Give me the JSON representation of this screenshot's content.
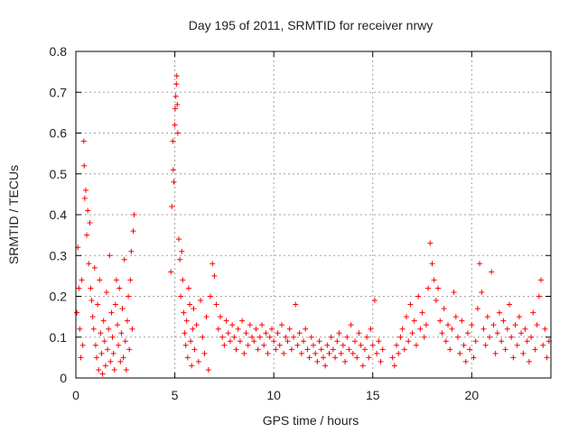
{
  "chart_data": {
    "type": "scatter",
    "title": "Day 195 of 2011, SRMTID for receiver nrwy",
    "xlabel": "GPS time / hours",
    "ylabel": "SRMTID / TECUs",
    "xlim": [
      0,
      24
    ],
    "ylim": [
      0,
      0.8
    ],
    "xticks": [
      0,
      5,
      10,
      15,
      20
    ],
    "yticks": [
      0,
      0.1,
      0.2,
      0.3,
      0.4,
      0.5,
      0.6,
      0.7,
      0.8
    ],
    "xtick_labels": [
      "0",
      "5",
      "10",
      "15",
      "20"
    ],
    "ytick_labels": [
      "0",
      "0.1",
      "0.2",
      "0.3",
      "0.4",
      "0.5",
      "0.6",
      "0.7",
      "0.8"
    ],
    "grid": true,
    "marker": "+",
    "color": "#ff0000",
    "series": [
      {
        "name": "SRMTID",
        "points": [
          [
            0.05,
            0.16
          ],
          [
            0.1,
            0.32
          ],
          [
            0.15,
            0.22
          ],
          [
            0.2,
            0.12
          ],
          [
            0.25,
            0.05
          ],
          [
            0.3,
            0.24
          ],
          [
            0.35,
            0.08
          ],
          [
            0.4,
            0.58
          ],
          [
            0.42,
            0.52
          ],
          [
            0.45,
            0.44
          ],
          [
            0.5,
            0.46
          ],
          [
            0.55,
            0.35
          ],
          [
            0.6,
            0.41
          ],
          [
            0.65,
            0.28
          ],
          [
            0.7,
            0.38
          ],
          [
            0.75,
            0.22
          ],
          [
            0.8,
            0.19
          ],
          [
            0.85,
            0.15
          ],
          [
            0.9,
            0.12
          ],
          [
            0.95,
            0.27
          ],
          [
            1.0,
            0.08
          ],
          [
            1.05,
            0.05
          ],
          [
            1.1,
            0.18
          ],
          [
            1.15,
            0.02
          ],
          [
            1.2,
            0.24
          ],
          [
            1.25,
            0.11
          ],
          [
            1.3,
            0.06
          ],
          [
            1.35,
            0.01
          ],
          [
            1.4,
            0.14
          ],
          [
            1.45,
            0.09
          ],
          [
            1.5,
            0.03
          ],
          [
            1.55,
            0.21
          ],
          [
            1.6,
            0.07
          ],
          [
            1.65,
            0.12
          ],
          [
            1.7,
            0.3
          ],
          [
            1.75,
            0.04
          ],
          [
            1.8,
            0.16
          ],
          [
            1.85,
            0.1
          ],
          [
            1.9,
            0.06
          ],
          [
            1.95,
            0.02
          ],
          [
            2.0,
            0.18
          ],
          [
            2.05,
            0.24
          ],
          [
            2.1,
            0.13
          ],
          [
            2.15,
            0.08
          ],
          [
            2.2,
            0.22
          ],
          [
            2.25,
            0.04
          ],
          [
            2.3,
            0.11
          ],
          [
            2.35,
            0.17
          ],
          [
            2.4,
            0.05
          ],
          [
            2.45,
            0.29
          ],
          [
            2.5,
            0.09
          ],
          [
            2.55,
            0.02
          ],
          [
            2.6,
            0.14
          ],
          [
            2.65,
            0.2
          ],
          [
            2.7,
            0.07
          ],
          [
            2.75,
            0.24
          ],
          [
            2.8,
            0.31
          ],
          [
            2.85,
            0.12
          ],
          [
            2.9,
            0.36
          ],
          [
            2.95,
            0.4
          ],
          [
            4.8,
            0.26
          ],
          [
            4.85,
            0.42
          ],
          [
            4.9,
            0.58
          ],
          [
            4.92,
            0.51
          ],
          [
            4.95,
            0.48
          ],
          [
            5.0,
            0.62
          ],
          [
            5.02,
            0.66
          ],
          [
            5.05,
            0.69
          ],
          [
            5.08,
            0.72
          ],
          [
            5.1,
            0.74
          ],
          [
            5.12,
            0.67
          ],
          [
            5.15,
            0.6
          ],
          [
            5.2,
            0.34
          ],
          [
            5.25,
            0.29
          ],
          [
            5.3,
            0.2
          ],
          [
            5.35,
            0.31
          ],
          [
            5.4,
            0.24
          ],
          [
            5.45,
            0.16
          ],
          [
            5.5,
            0.11
          ],
          [
            5.55,
            0.08
          ],
          [
            5.6,
            0.14
          ],
          [
            5.65,
            0.05
          ],
          [
            5.7,
            0.22
          ],
          [
            5.75,
            0.18
          ],
          [
            5.8,
            0.09
          ],
          [
            5.85,
            0.03
          ],
          [
            5.9,
            0.12
          ],
          [
            5.95,
            0.17
          ],
          [
            6.0,
            0.07
          ],
          [
            6.1,
            0.13
          ],
          [
            6.2,
            0.04
          ],
          [
            6.3,
            0.19
          ],
          [
            6.4,
            0.1
          ],
          [
            6.5,
            0.06
          ],
          [
            6.6,
            0.15
          ],
          [
            6.7,
            0.02
          ],
          [
            6.8,
            0.2
          ],
          [
            6.9,
            0.28
          ],
          [
            7.0,
            0.25
          ],
          [
            7.1,
            0.18
          ],
          [
            7.2,
            0.12
          ],
          [
            7.3,
            0.15
          ],
          [
            7.4,
            0.1
          ],
          [
            7.5,
            0.08
          ],
          [
            7.6,
            0.14
          ],
          [
            7.7,
            0.11
          ],
          [
            7.8,
            0.09
          ],
          [
            7.9,
            0.13
          ],
          [
            8.0,
            0.1
          ],
          [
            8.1,
            0.07
          ],
          [
            8.2,
            0.12
          ],
          [
            8.3,
            0.09
          ],
          [
            8.4,
            0.14
          ],
          [
            8.5,
            0.06
          ],
          [
            8.6,
            0.11
          ],
          [
            8.7,
            0.08
          ],
          [
            8.8,
            0.13
          ],
          [
            8.9,
            0.1
          ],
          [
            9.0,
            0.09
          ],
          [
            9.1,
            0.12
          ],
          [
            9.2,
            0.07
          ],
          [
            9.3,
            0.1
          ],
          [
            9.4,
            0.13
          ],
          [
            9.5,
            0.08
          ],
          [
            9.6,
            0.11
          ],
          [
            9.7,
            0.06
          ],
          [
            9.8,
            0.1
          ],
          [
            9.9,
            0.12
          ],
          [
            10.0,
            0.09
          ],
          [
            10.1,
            0.07
          ],
          [
            10.2,
            0.11
          ],
          [
            10.3,
            0.08
          ],
          [
            10.4,
            0.13
          ],
          [
            10.5,
            0.06
          ],
          [
            10.6,
            0.1
          ],
          [
            10.7,
            0.09
          ],
          [
            10.8,
            0.12
          ],
          [
            10.9,
            0.07
          ],
          [
            11.0,
            0.1
          ],
          [
            11.1,
            0.18
          ],
          [
            11.2,
            0.08
          ],
          [
            11.3,
            0.11
          ],
          [
            11.4,
            0.06
          ],
          [
            11.5,
            0.09
          ],
          [
            11.6,
            0.12
          ],
          [
            11.7,
            0.07
          ],
          [
            11.8,
            0.05
          ],
          [
            11.9,
            0.1
          ],
          [
            12.0,
            0.08
          ],
          [
            12.1,
            0.06
          ],
          [
            12.2,
            0.04
          ],
          [
            12.3,
            0.09
          ],
          [
            12.4,
            0.07
          ],
          [
            12.5,
            0.05
          ],
          [
            12.6,
            0.03
          ],
          [
            12.7,
            0.08
          ],
          [
            12.8,
            0.06
          ],
          [
            12.9,
            0.1
          ],
          [
            13.0,
            0.07
          ],
          [
            13.1,
            0.05
          ],
          [
            13.2,
            0.09
          ],
          [
            13.3,
            0.11
          ],
          [
            13.4,
            0.06
          ],
          [
            13.5,
            0.08
          ],
          [
            13.6,
            0.04
          ],
          [
            13.7,
            0.1
          ],
          [
            13.8,
            0.07
          ],
          [
            13.9,
            0.13
          ],
          [
            14.0,
            0.06
          ],
          [
            14.1,
            0.09
          ],
          [
            14.2,
            0.05
          ],
          [
            14.3,
            0.11
          ],
          [
            14.4,
            0.08
          ],
          [
            14.5,
            0.03
          ],
          [
            14.6,
            0.07
          ],
          [
            14.7,
            0.1
          ],
          [
            14.8,
            0.05
          ],
          [
            14.9,
            0.12
          ],
          [
            15.0,
            0.08
          ],
          [
            15.1,
            0.19
          ],
          [
            15.2,
            0.06
          ],
          [
            15.3,
            0.09
          ],
          [
            15.4,
            0.04
          ],
          [
            15.5,
            0.07
          ],
          [
            16.0,
            0.05
          ],
          [
            16.1,
            0.03
          ],
          [
            16.2,
            0.08
          ],
          [
            16.3,
            0.06
          ],
          [
            16.4,
            0.1
          ],
          [
            16.5,
            0.12
          ],
          [
            16.6,
            0.07
          ],
          [
            16.7,
            0.15
          ],
          [
            16.8,
            0.09
          ],
          [
            16.9,
            0.18
          ],
          [
            17.0,
            0.11
          ],
          [
            17.1,
            0.14
          ],
          [
            17.2,
            0.08
          ],
          [
            17.3,
            0.2
          ],
          [
            17.4,
            0.12
          ],
          [
            17.5,
            0.16
          ],
          [
            17.6,
            0.1
          ],
          [
            17.7,
            0.13
          ],
          [
            17.8,
            0.22
          ],
          [
            17.9,
            0.33
          ],
          [
            18.0,
            0.28
          ],
          [
            18.1,
            0.24
          ],
          [
            18.2,
            0.19
          ],
          [
            18.3,
            0.22
          ],
          [
            18.4,
            0.14
          ],
          [
            18.5,
            0.11
          ],
          [
            18.6,
            0.17
          ],
          [
            18.7,
            0.09
          ],
          [
            18.8,
            0.13
          ],
          [
            18.9,
            0.07
          ],
          [
            19.0,
            0.12
          ],
          [
            19.1,
            0.21
          ],
          [
            19.2,
            0.15
          ],
          [
            19.3,
            0.1
          ],
          [
            19.4,
            0.06
          ],
          [
            19.5,
            0.14
          ],
          [
            19.6,
            0.08
          ],
          [
            19.7,
            0.04
          ],
          [
            19.8,
            0.11
          ],
          [
            19.9,
            0.07
          ],
          [
            20.0,
            0.13
          ],
          [
            20.1,
            0.05
          ],
          [
            20.2,
            0.09
          ],
          [
            20.3,
            0.17
          ],
          [
            20.4,
            0.28
          ],
          [
            20.5,
            0.21
          ],
          [
            20.6,
            0.12
          ],
          [
            20.7,
            0.08
          ],
          [
            20.8,
            0.15
          ],
          [
            20.9,
            0.1
          ],
          [
            21.0,
            0.26
          ],
          [
            21.1,
            0.13
          ],
          [
            21.2,
            0.06
          ],
          [
            21.3,
            0.11
          ],
          [
            21.4,
            0.16
          ],
          [
            21.5,
            0.09
          ],
          [
            21.6,
            0.14
          ],
          [
            21.7,
            0.07
          ],
          [
            21.8,
            0.12
          ],
          [
            21.9,
            0.18
          ],
          [
            22.0,
            0.1
          ],
          [
            22.1,
            0.05
          ],
          [
            22.2,
            0.13
          ],
          [
            22.3,
            0.08
          ],
          [
            22.4,
            0.15
          ],
          [
            22.5,
            0.11
          ],
          [
            22.6,
            0.06
          ],
          [
            22.7,
            0.12
          ],
          [
            22.8,
            0.09
          ],
          [
            22.9,
            0.04
          ],
          [
            23.0,
            0.1
          ],
          [
            23.1,
            0.16
          ],
          [
            23.2,
            0.07
          ],
          [
            23.3,
            0.13
          ],
          [
            23.4,
            0.2
          ],
          [
            23.5,
            0.24
          ],
          [
            23.6,
            0.08
          ],
          [
            23.7,
            0.12
          ],
          [
            23.8,
            0.05
          ],
          [
            23.9,
            0.09
          ]
        ]
      }
    ]
  }
}
